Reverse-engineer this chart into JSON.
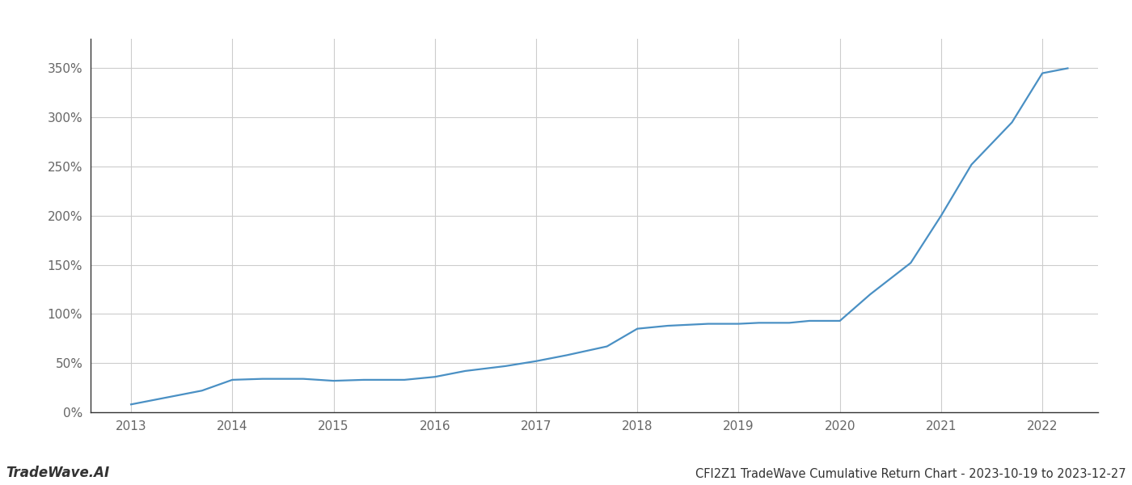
{
  "title": "CFI2Z1 TradeWave Cumulative Return Chart - 2023-10-19 to 2023-12-27",
  "watermark": "TradeWave.AI",
  "line_color": "#4a90c4",
  "background_color": "#ffffff",
  "grid_color": "#cccccc",
  "x_values": [
    2013.0,
    2013.3,
    2013.7,
    2014.0,
    2014.3,
    2014.7,
    2015.0,
    2015.3,
    2015.7,
    2016.0,
    2016.3,
    2016.7,
    2017.0,
    2017.3,
    2017.7,
    2018.0,
    2018.3,
    2018.7,
    2019.0,
    2019.2,
    2019.5,
    2019.7,
    2020.0,
    2020.3,
    2020.7,
    2021.0,
    2021.3,
    2021.7,
    2022.0,
    2022.25
  ],
  "y_values": [
    8,
    14,
    22,
    33,
    34,
    34,
    32,
    33,
    33,
    36,
    42,
    47,
    52,
    58,
    67,
    85,
    88,
    90,
    90,
    91,
    91,
    93,
    93,
    120,
    152,
    200,
    252,
    295,
    345,
    350
  ],
  "ylim": [
    0,
    380
  ],
  "yticks": [
    0,
    50,
    100,
    150,
    200,
    250,
    300,
    350
  ],
  "xlim": [
    2012.6,
    2022.55
  ],
  "xticks": [
    2013,
    2014,
    2015,
    2016,
    2017,
    2018,
    2019,
    2020,
    2021,
    2022
  ],
  "line_width": 1.6,
  "title_fontsize": 10.5,
  "tick_fontsize": 11,
  "watermark_fontsize": 12,
  "spine_color": "#333333",
  "tick_color": "#666666"
}
